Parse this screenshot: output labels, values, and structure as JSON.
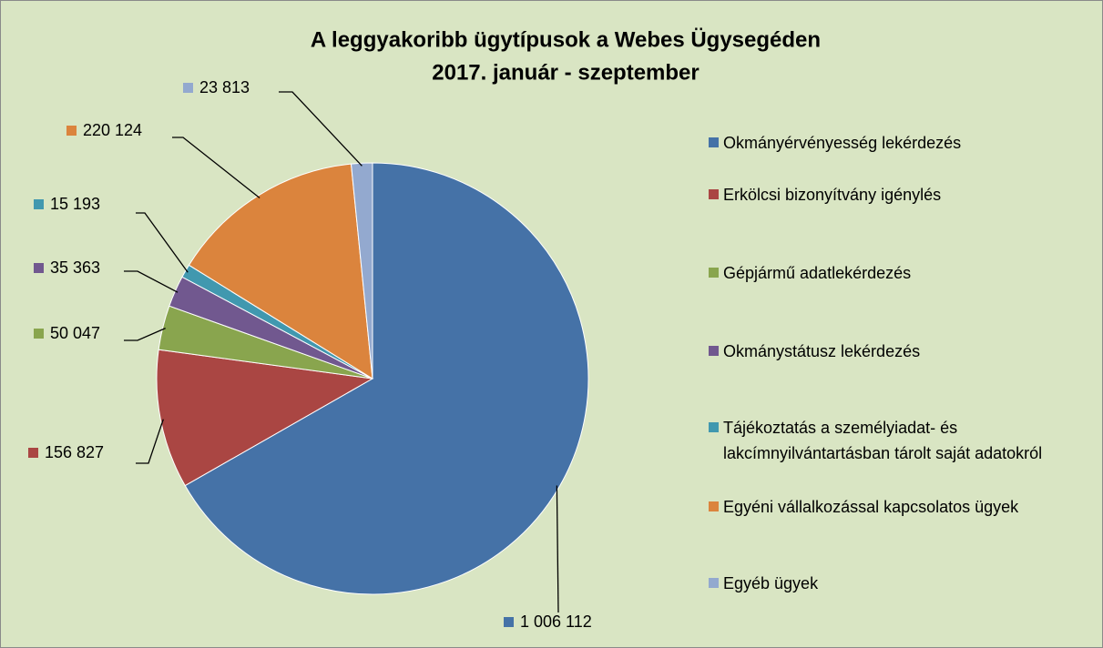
{
  "chart_data": {
    "type": "pie",
    "title": "A leggyakoribb ügytípusok a Webes Ügysegéden",
    "subtitle": "2017. január - szeptember",
    "categories": [
      "Okmányérvényesség lekérdezés",
      "Erkölcsi bizonyítvány igénylés",
      "Gépjármű adatlekérdezés",
      "Okmánystátusz lekérdezés",
      "Tájékoztatás a személyiadat- és lakcímnyilvántartásban tárolt saját adatokról",
      "Egyéni vállalkozással kapcsolatos ügyek",
      "Egyéb ügyek"
    ],
    "values": [
      1006112,
      156827,
      50047,
      35363,
      15193,
      220124,
      23813
    ],
    "value_labels": [
      "1 006 112",
      "156 827",
      "50 047",
      "35 363",
      "15 193",
      "220 124",
      "23 813"
    ],
    "colors": [
      "#4572a7",
      "#aa4643",
      "#89a54e",
      "#71588f",
      "#4198af",
      "#db843d",
      "#93a9cf"
    ],
    "legend": "right"
  }
}
